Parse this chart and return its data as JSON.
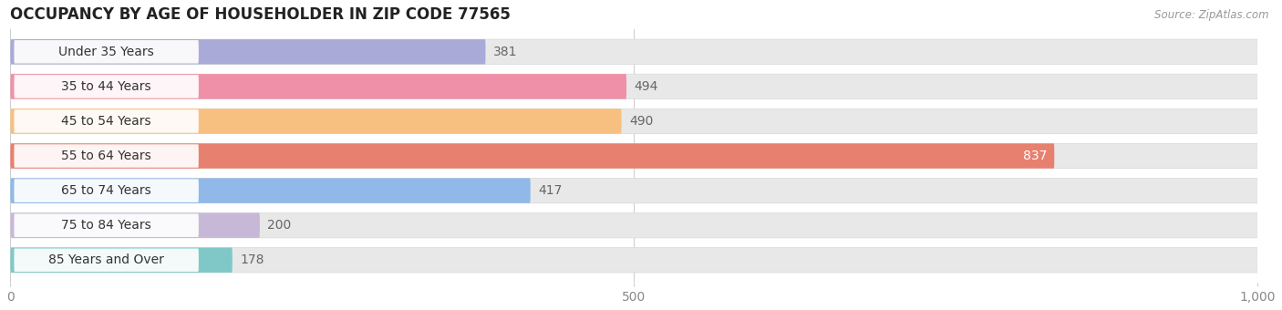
{
  "title": "OCCUPANCY BY AGE OF HOUSEHOLDER IN ZIP CODE 77565",
  "source": "Source: ZipAtlas.com",
  "categories": [
    "Under 35 Years",
    "35 to 44 Years",
    "45 to 54 Years",
    "55 to 64 Years",
    "65 to 74 Years",
    "75 to 84 Years",
    "85 Years and Over"
  ],
  "values": [
    381,
    494,
    490,
    837,
    417,
    200,
    178
  ],
  "bar_colors": [
    "#aaaad8",
    "#f090a8",
    "#f8c080",
    "#e88070",
    "#90b8e8",
    "#c8b8d8",
    "#80c8c8"
  ],
  "bar_bg_color": "#e8e8e8",
  "bar_row_bg": "#f0f0f0",
  "xlim": [
    0,
    1000
  ],
  "xticks": [
    0,
    500,
    1000
  ],
  "xtick_labels": [
    "0",
    "500",
    "1,000"
  ],
  "value_color_inside": "#ffffff",
  "value_color_outside": "#666666",
  "title_fontsize": 12,
  "label_fontsize": 10,
  "tick_fontsize": 10,
  "background_color": "#ffffff",
  "plot_bg_color": "#ffffff",
  "row_separator_color": "#ffffff"
}
